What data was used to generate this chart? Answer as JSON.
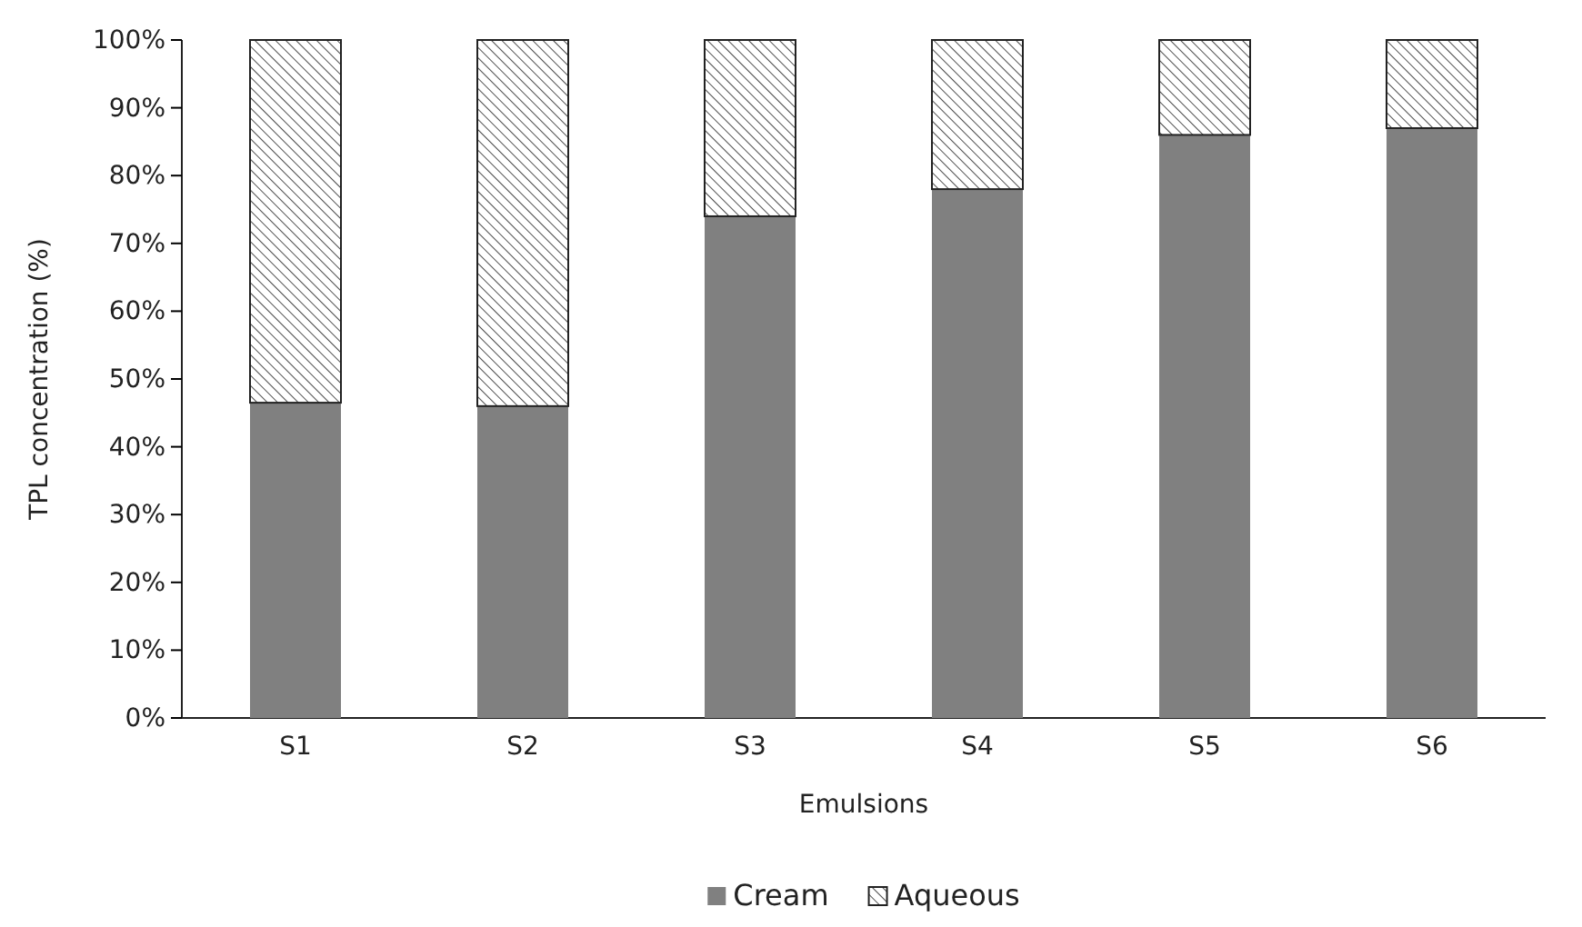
{
  "chart_data": {
    "type": "bar",
    "stacked": true,
    "xlabel": "Emulsions",
    "ylabel": "TPL concentration (%)",
    "categories": [
      "S1",
      "S2",
      "S3",
      "S4",
      "S5",
      "S6"
    ],
    "series": [
      {
        "name": "Cream",
        "color": "#808080",
        "values": [
          46.5,
          46,
          74,
          78,
          86,
          87
        ]
      },
      {
        "name": "Aqueous",
        "color": "#222222",
        "values": [
          53.5,
          54,
          26,
          22,
          14,
          13
        ]
      }
    ],
    "ylim": [
      0,
      100
    ],
    "yticks": [
      {
        "value": 0,
        "label": "0%"
      },
      {
        "value": 10,
        "label": "10%"
      },
      {
        "value": 20,
        "label": "20%"
      },
      {
        "value": 30,
        "label": "30%"
      },
      {
        "value": 40,
        "label": "40%"
      },
      {
        "value": 50,
        "label": "50%"
      },
      {
        "value": 60,
        "label": "60%"
      },
      {
        "value": 70,
        "label": "70%"
      },
      {
        "value": 80,
        "label": "80%"
      },
      {
        "value": 90,
        "label": "90%"
      },
      {
        "value": 100,
        "label": "100%"
      }
    ],
    "grid": false,
    "legend": "bottom"
  }
}
